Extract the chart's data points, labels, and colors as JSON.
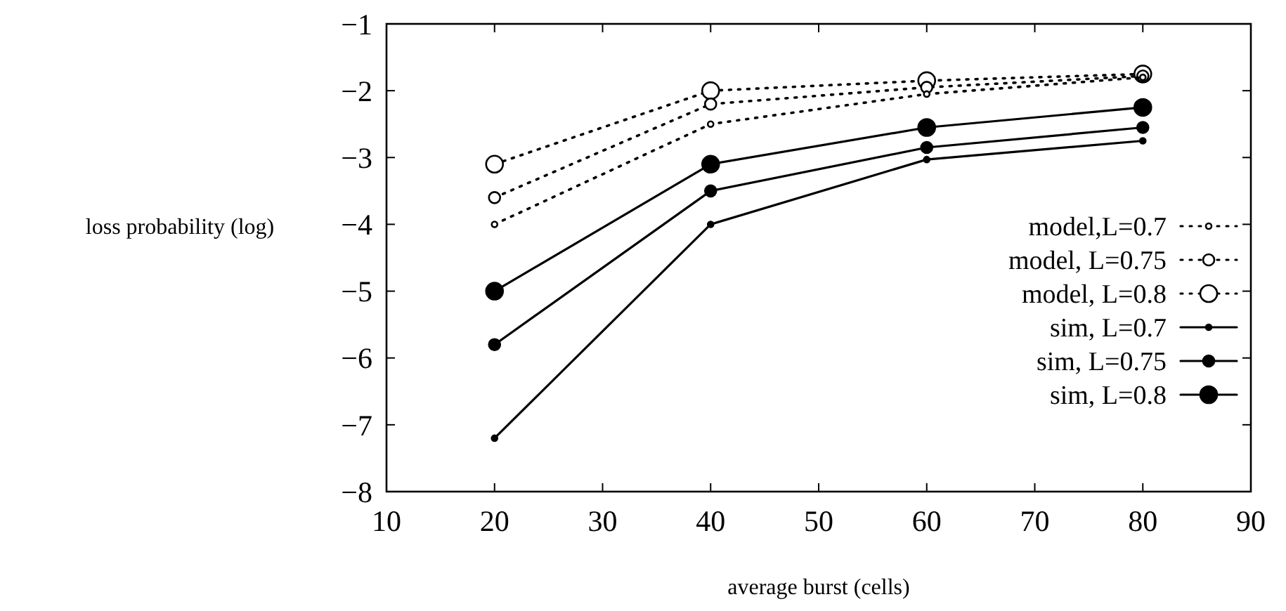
{
  "chart_data": {
    "type": "line",
    "xlabel": "average burst (cells)",
    "ylabel": "loss probability (log)",
    "x": [
      20,
      40,
      60,
      80
    ],
    "xlim": [
      10,
      90
    ],
    "xticks": [
      10,
      20,
      30,
      40,
      50,
      60,
      70,
      80,
      90
    ],
    "ylim": [
      -8,
      -1
    ],
    "yticks": [
      -8,
      -7,
      -6,
      -5,
      -4,
      -3,
      -2,
      -1
    ],
    "legend": "right",
    "grid": false,
    "marker": "circle",
    "series": [
      {
        "name": "model,L=0.7",
        "color": "#000000",
        "line_style": "dotted",
        "values": [
          -4.0,
          -2.5,
          -2.05,
          -1.8
        ]
      },
      {
        "name": "model, L=0.75",
        "color": "#000000",
        "line_style": "dotted",
        "values": [
          -3.6,
          -2.2,
          -1.95,
          -1.78
        ]
      },
      {
        "name": "model, L=0.8",
        "color": "#000000",
        "line_style": "dotted",
        "values": [
          -3.1,
          -2.0,
          -1.85,
          -1.75
        ]
      },
      {
        "name": "sim, L=0.7",
        "color": "#000000",
        "line_style": "solid",
        "values": [
          -7.2,
          -4.0,
          -3.03,
          -2.75
        ]
      },
      {
        "name": "sim, L=0.75",
        "color": "#000000",
        "line_style": "solid",
        "values": [
          -5.8,
          -3.5,
          -2.85,
          -2.55
        ]
      },
      {
        "name": "sim, L=0.8",
        "color": "#000000",
        "line_style": "solid",
        "values": [
          -5.0,
          -3.1,
          -2.55,
          -2.25
        ]
      }
    ]
  }
}
